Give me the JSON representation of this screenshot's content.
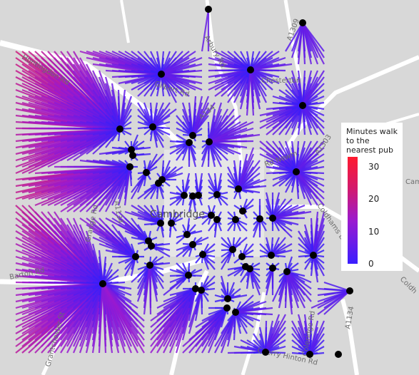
{
  "legend": {
    "title": "Minutes walk to the nearest pub",
    "ticks": [
      {
        "value": 30,
        "label": "30"
      },
      {
        "value": 20,
        "label": "20"
      },
      {
        "value": 10,
        "label": "10"
      },
      {
        "value": 0,
        "label": "0"
      }
    ],
    "max": 33,
    "color_low": "#2a1eff",
    "color_mid": "#9a1ad0",
    "color_high": "#ff1a2e"
  },
  "map_labels": {
    "city": "Cambridge",
    "roads": [
      {
        "name": "huntingdon-road-label",
        "text": "Huntingdon Rd"
      },
      {
        "name": "arbury-road-label",
        "text": "Arbury Rd"
      },
      {
        "name": "chesterton-label",
        "text": "Chesterton"
      },
      {
        "name": "a1309-label",
        "text": "A1309"
      },
      {
        "name": "gilbert-road-label",
        "text": "Gilbert Rd"
      },
      {
        "name": "a134-label",
        "text": "A134"
      },
      {
        "name": "a1134-label",
        "text": "A1134"
      },
      {
        "name": "barton-road-label",
        "text": "Barton Rd"
      },
      {
        "name": "grantchester-label",
        "text": "Grantchester St"
      },
      {
        "name": "grange-road-label",
        "text": "Grange Rd"
      },
      {
        "name": "coldhams-label",
        "text": "Coldhams L"
      },
      {
        "name": "coleridge-road-label",
        "text": "Coleridge Rd"
      },
      {
        "name": "cherry-hinton-label",
        "text": "Cherry Hinton Rd"
      },
      {
        "name": "a1303-label",
        "text": "A1303"
      },
      {
        "name": "newmarket-road-label",
        "text": "Rd Newm"
      },
      {
        "name": "a1134-east-label",
        "text": "A1134"
      },
      {
        "name": "cam-label",
        "text": "Cam"
      },
      {
        "name": "coldh-label",
        "text": "Coldh"
      }
    ]
  },
  "map_data": {
    "grid_step": 9,
    "pubs": [
      [
        292,
        13
      ],
      [
        424,
        32
      ],
      [
        226,
        104
      ],
      [
        351,
        98
      ],
      [
        424,
        148
      ],
      [
        168,
        181
      ],
      [
        214,
        178
      ],
      [
        270,
        190
      ],
      [
        293,
        199
      ],
      [
        265,
        200
      ],
      [
        184,
        210
      ],
      [
        186,
        218
      ],
      [
        182,
        234
      ],
      [
        205,
        242
      ],
      [
        227,
        252
      ],
      [
        222,
        257
      ],
      [
        415,
        241
      ],
      [
        258,
        274
      ],
      [
        270,
        275
      ],
      [
        304,
        273
      ],
      [
        334,
        265
      ],
      [
        278,
        274
      ],
      [
        296,
        302
      ],
      [
        340,
        296
      ],
      [
        330,
        308
      ],
      [
        364,
        307
      ],
      [
        382,
        306
      ],
      [
        225,
        313
      ],
      [
        240,
        313
      ],
      [
        262,
        329
      ],
      [
        208,
        338
      ],
      [
        212,
        345
      ],
      [
        270,
        343
      ],
      [
        284,
        357
      ],
      [
        190,
        360
      ],
      [
        326,
        350
      ],
      [
        339,
        360
      ],
      [
        344,
        374
      ],
      [
        350,
        377
      ],
      [
        380,
        358
      ],
      [
        382,
        376
      ],
      [
        402,
        381
      ],
      [
        439,
        358
      ],
      [
        210,
        372
      ],
      [
        264,
        386
      ],
      [
        144,
        398
      ],
      [
        274,
        405
      ],
      [
        282,
        407
      ],
      [
        319,
        419
      ],
      [
        318,
        432
      ],
      [
        330,
        438
      ],
      [
        490,
        408
      ],
      [
        372,
        494
      ],
      [
        434,
        497
      ],
      [
        474,
        497
      ],
      [
        304,
        308
      ]
    ]
  }
}
